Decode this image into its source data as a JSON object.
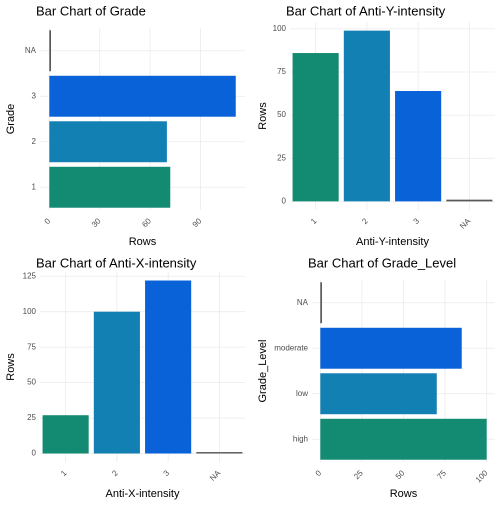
{
  "chart_data": [
    {
      "type": "bar",
      "orientation": "horizontal",
      "title": "Bar Chart of Grade",
      "x_label": "Rows",
      "y_label": "Grade",
      "categories": [
        "1",
        "2",
        "3",
        "NA"
      ],
      "values": [
        72,
        70,
        111,
        1
      ],
      "colors": [
        "#138a72",
        "#1380b4",
        "#0a62d8",
        "#595959"
      ],
      "xlim": [
        -5.55,
        116.5
      ],
      "xticks": [
        0,
        30,
        60,
        90
      ],
      "grid": true
    },
    {
      "type": "bar",
      "orientation": "vertical",
      "title": "Bar Chart of Anti-Y-intensity",
      "x_label": "Anti-Y-intensity",
      "y_label": "Rows",
      "categories": [
        "1",
        "2",
        "3",
        "NA"
      ],
      "values": [
        86,
        99,
        64,
        1
      ],
      "colors": [
        "#138a72",
        "#1380b4",
        "#0a62d8",
        "#595959"
      ],
      "ylim": [
        -5,
        104
      ],
      "yticks": [
        0,
        25,
        50,
        75,
        100
      ],
      "grid": true
    },
    {
      "type": "bar",
      "orientation": "vertical",
      "title": "Bar Chart of Anti-X-intensity",
      "x_label": "Anti-X-intensity",
      "y_label": "Rows",
      "categories": [
        "1",
        "2",
        "3",
        "NA"
      ],
      "values": [
        27,
        100,
        122,
        1
      ],
      "colors": [
        "#138a72",
        "#1380b4",
        "#0a62d8",
        "#595959"
      ],
      "ylim": [
        -6,
        128
      ],
      "yticks": [
        0,
        25,
        50,
        75,
        100,
        125
      ],
      "grid": true
    },
    {
      "type": "bar",
      "orientation": "horizontal",
      "title": "Bar Chart of Grade_Level",
      "x_label": "Rows",
      "y_label": "Grade_Level",
      "categories": [
        "high",
        "low",
        "moderate",
        "NA"
      ],
      "values": [
        100,
        70,
        85,
        1
      ],
      "colors": [
        "#138a72",
        "#1380b4",
        "#0a62d8",
        "#595959"
      ],
      "xlim": [
        -5,
        105
      ],
      "xticks": [
        0,
        25,
        50,
        75,
        100
      ],
      "grid": true
    }
  ]
}
